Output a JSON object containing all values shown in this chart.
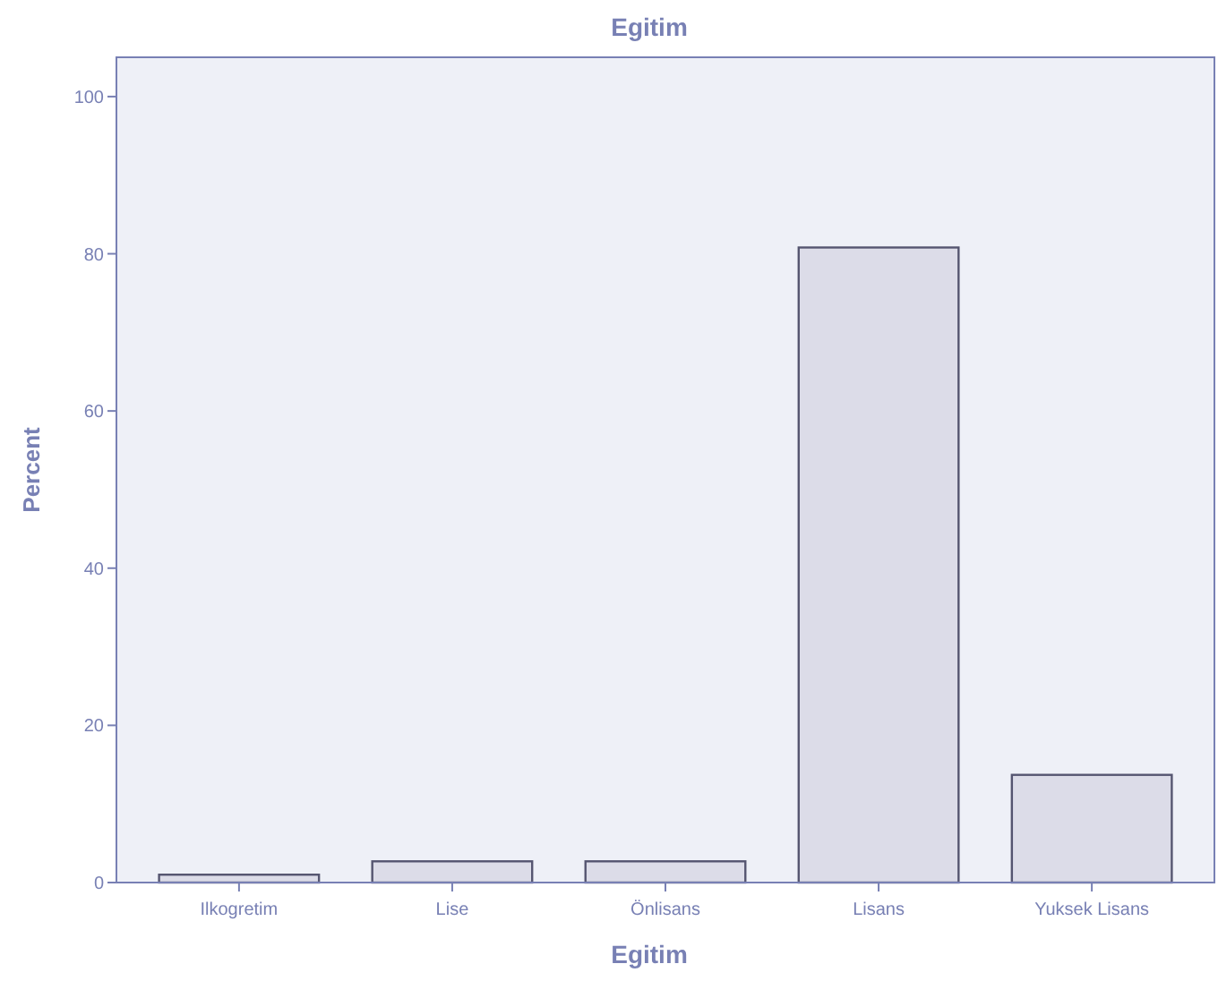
{
  "chart_data": {
    "type": "bar",
    "title": "Egitim",
    "xlabel": "Egitim",
    "ylabel": "Percent",
    "categories": [
      "Ilkogretim",
      "Lise",
      "Önlisans",
      "Lisans",
      "Yuksek Lisans"
    ],
    "values": [
      1,
      2.7,
      2.7,
      80.8,
      13.7
    ],
    "color": "#dcdce8",
    "ylim": [
      0,
      105
    ],
    "yticks": [
      0,
      20,
      40,
      60,
      80,
      100
    ]
  }
}
